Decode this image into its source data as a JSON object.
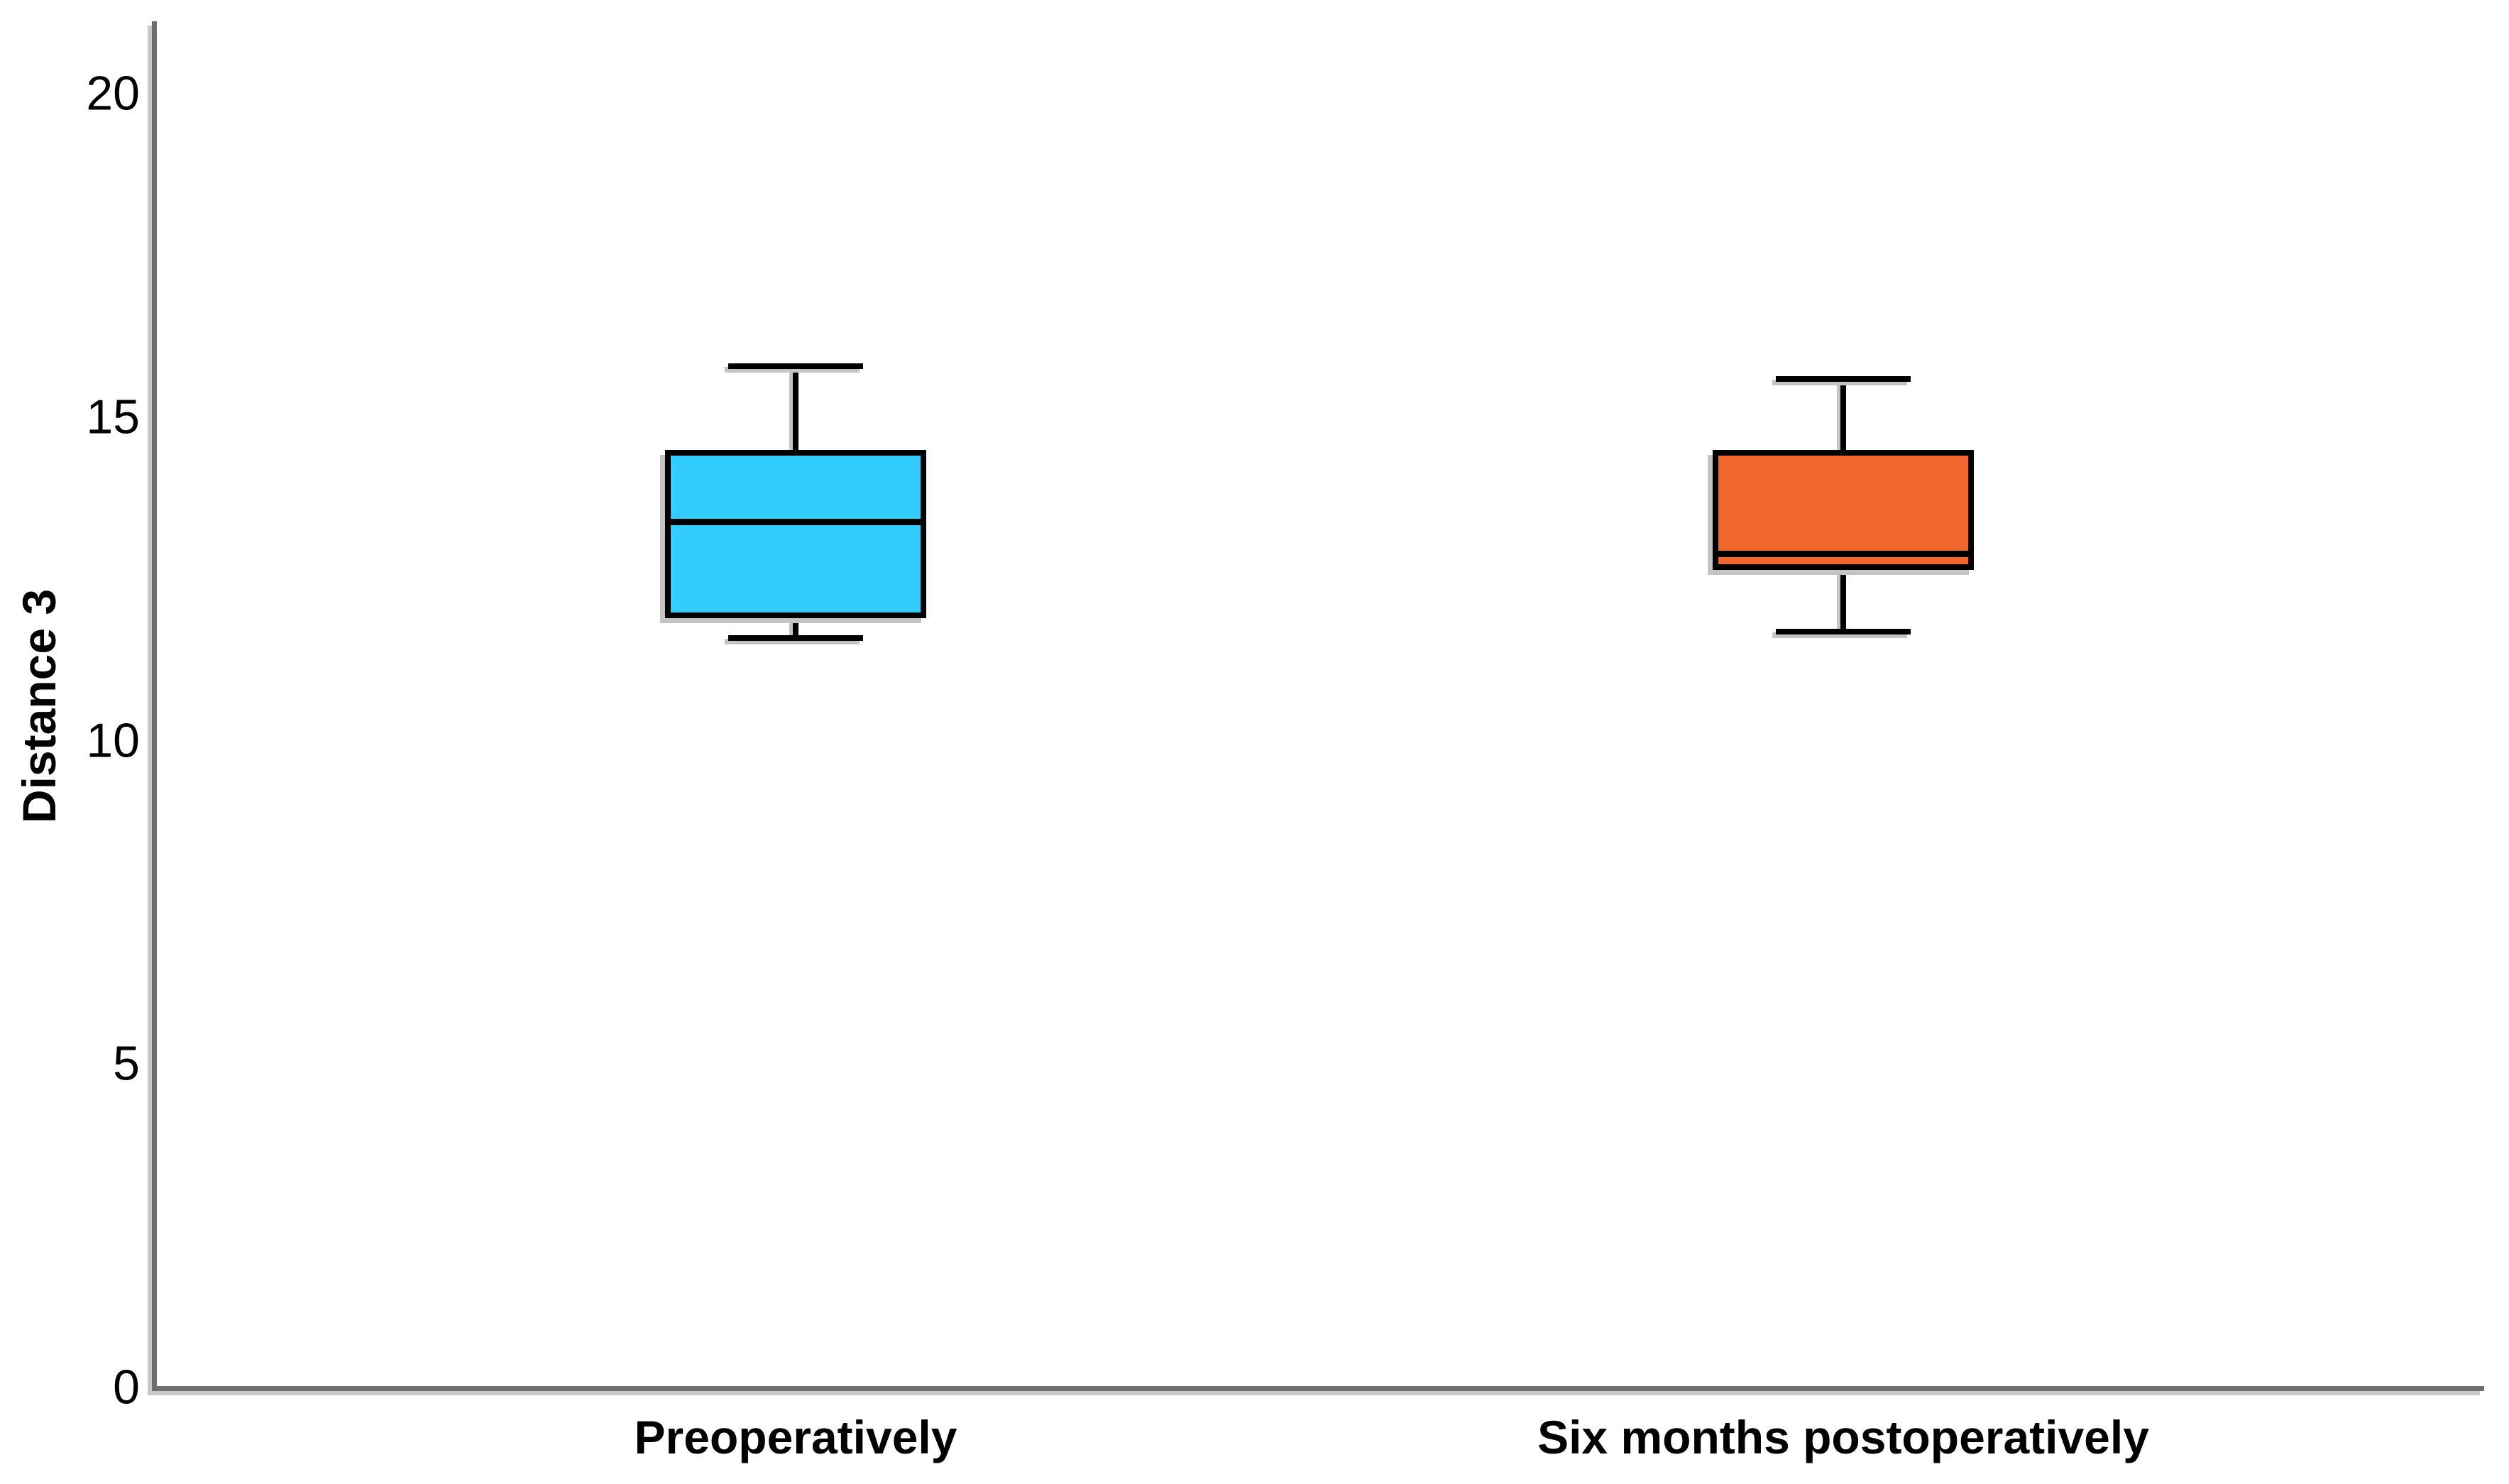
{
  "figure": {
    "background": "#ffffff",
    "axis_color": "#6E6E6E",
    "box_outline_color": "#000000",
    "text_color": "#000000"
  },
  "chart_data": {
    "type": "boxplot",
    "title": "",
    "xlabel": "",
    "ylabel": "Distance 3",
    "ylim": [
      0,
      21
    ],
    "yticks": [
      0,
      5,
      10,
      15,
      20
    ],
    "grid": false,
    "legend": false,
    "categories": [
      "Preoperatively",
      "Six months postoperatively"
    ],
    "series": [
      {
        "name": "Preoperatively",
        "color": "#33CCFF",
        "whisker_low": 11.6,
        "q1": 11.9,
        "median": 13.4,
        "q3": 14.5,
        "whisker_high": 15.8
      },
      {
        "name": "Six months postoperatively",
        "color": "#F2672C",
        "whisker_low": 11.7,
        "q1": 12.65,
        "median": 12.9,
        "q3": 14.5,
        "whisker_high": 15.6
      }
    ]
  }
}
